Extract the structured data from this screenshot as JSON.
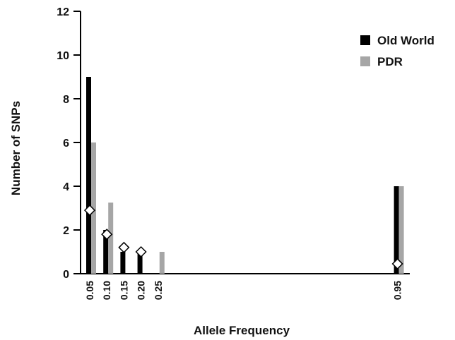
{
  "chart_data": {
    "type": "bar",
    "title": "",
    "xlabel": "Allele Frequency",
    "ylabel": "Number of SNPs",
    "ylim": [
      0,
      12
    ],
    "yticks": [
      0,
      2,
      4,
      6,
      8,
      10,
      12
    ],
    "grid": false,
    "legend_position": "top-right",
    "categories": [
      "0.05",
      "0.10",
      "0.15",
      "0.20",
      "0.25",
      "0.95"
    ],
    "series": [
      {
        "name": "Old World",
        "color": "#000000",
        "values": [
          9,
          2,
          1,
          1,
          0,
          4
        ]
      },
      {
        "name": "PDR",
        "color": "#a6a6a6",
        "values": [
          6,
          3.25,
          0,
          0,
          1,
          4
        ]
      }
    ],
    "markers": {
      "shape": "diamond",
      "fill": "#ffffff",
      "values": [
        2.9,
        1.8,
        1.2,
        1.0,
        null,
        0.45
      ]
    }
  }
}
